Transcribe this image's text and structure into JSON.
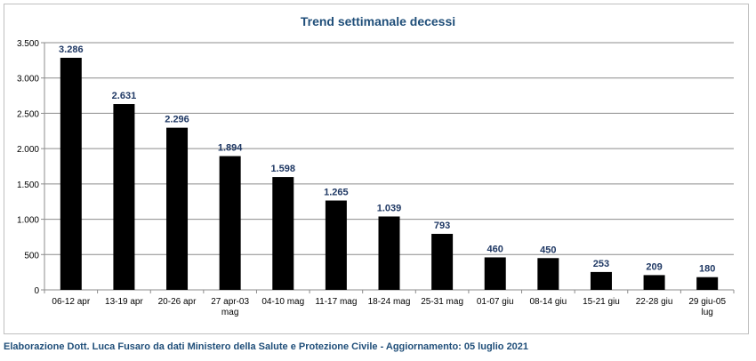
{
  "chart_data": {
    "type": "bar",
    "title": "Trend settimanale decessi",
    "categories": [
      [
        "06-12 apr"
      ],
      [
        "13-19 apr"
      ],
      [
        "20-26 apr"
      ],
      [
        "27 apr-03",
        "mag"
      ],
      [
        "04-10 mag"
      ],
      [
        "11-17 mag"
      ],
      [
        "18-24 mag"
      ],
      [
        "25-31 mag"
      ],
      [
        "01-07 giu"
      ],
      [
        "08-14 giu"
      ],
      [
        "15-21 giu"
      ],
      [
        "22-28 giu"
      ],
      [
        "29 giu-05",
        "lug"
      ]
    ],
    "values": [
      3286,
      2631,
      2296,
      1894,
      1598,
      1265,
      1039,
      793,
      460,
      450,
      253,
      209,
      180
    ],
    "value_labels": [
      "3.286",
      "2.631",
      "2.296",
      "1.894",
      "1.598",
      "1.265",
      "1.039",
      "793",
      "460",
      "450",
      "253",
      "209",
      "180"
    ],
    "ylim": [
      0,
      3500
    ],
    "yticks": [
      0,
      500,
      1000,
      1500,
      2000,
      2500,
      3000,
      3500
    ],
    "ytick_labels": [
      "0",
      "500",
      "1.000",
      "1.500",
      "2.000",
      "2.500",
      "3.000",
      "3.500"
    ],
    "grid": true,
    "bar_color": "#000000",
    "label_color": "#1f3864",
    "title_color": "#1f4e79"
  },
  "footer": {
    "text": "Elaborazione Dott. Luca Fusaro da dati Ministero della Salute e Protezione Civile - Aggiornamento: 05 luglio 2021"
  }
}
